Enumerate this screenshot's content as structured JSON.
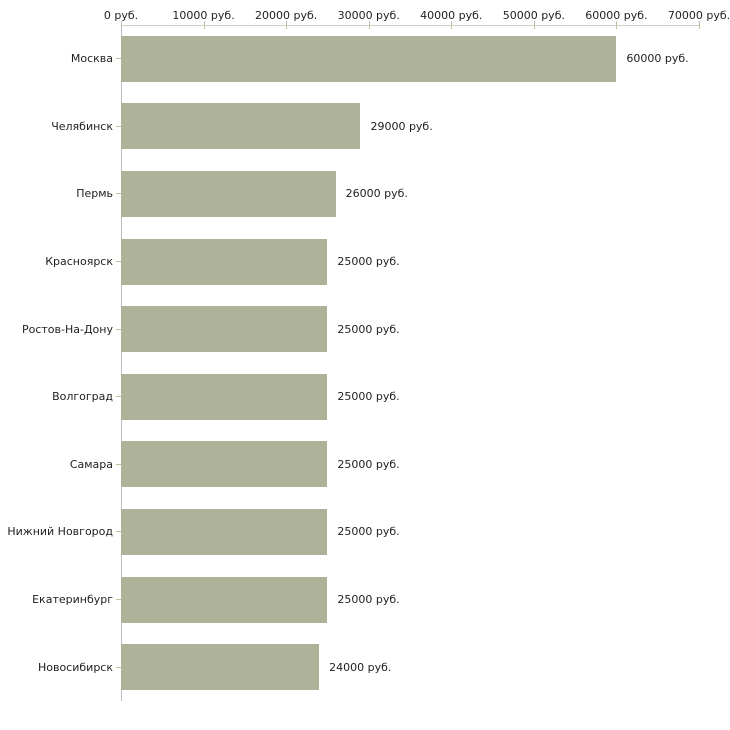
{
  "chart_data": {
    "type": "bar",
    "orientation": "horizontal",
    "title": "",
    "xlabel": "",
    "ylabel": "",
    "categories": [
      "Москва",
      "Челябинск",
      "Пермь",
      "Красноярск",
      "Ростов-На-Дону",
      "Волгоград",
      "Самара",
      "Нижний Новгород",
      "Екатеринбург",
      "Новосибирск"
    ],
    "values": [
      60000,
      29000,
      26000,
      25000,
      25000,
      25000,
      25000,
      25000,
      25000,
      24000
    ],
    "value_labels": [
      "60000 руб.",
      "29000 руб.",
      "26000 руб.",
      "25000 руб.",
      "25000 руб.",
      "25000 руб.",
      "25000 руб.",
      "25000 руб.",
      "25000 руб.",
      "24000 руб."
    ],
    "x_ticks": [
      0,
      10000,
      20000,
      30000,
      40000,
      50000,
      60000,
      70000
    ],
    "x_tick_labels": [
      "0 руб.",
      "10000 руб.",
      "20000 руб.",
      "30000 руб.",
      "40000 руб.",
      "50000 руб.",
      "60000 руб.",
      "70000 руб."
    ],
    "xlim": [
      0,
      70000
    ],
    "unit": "руб.",
    "grid": false,
    "legend": "none",
    "colors": {
      "bar": "#adb299",
      "x_axis_line": "#d0cec2",
      "x_tick": "#c8bfa2",
      "y_axis_line": "#bdbdbd",
      "category_tick": "#c8bfa2",
      "text": "#1f1f1f",
      "background": "#ffffff"
    }
  }
}
